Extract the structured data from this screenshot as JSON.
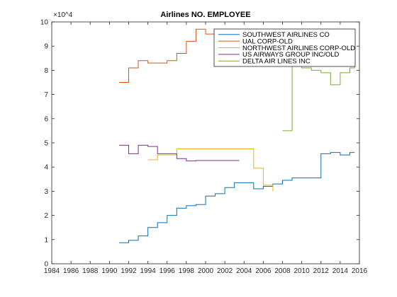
{
  "chart_data": {
    "type": "line",
    "title": "Airlines NO. EMPLOYEE",
    "xlabel": "",
    "ylabel": "",
    "y_scale_multiplier": "×10^4",
    "xlim": [
      1984,
      2016
    ],
    "ylim": [
      0,
      10
    ],
    "x_ticks": [
      1984,
      1986,
      1988,
      1990,
      1992,
      1994,
      1996,
      1998,
      2000,
      2002,
      2004,
      2006,
      2008,
      2010,
      2012,
      2014,
      2016
    ],
    "y_ticks": [
      0,
      1,
      2,
      3,
      4,
      5,
      6,
      7,
      8,
      9,
      10
    ],
    "legend_position": "top-right",
    "grid": false,
    "series": [
      {
        "name": "SOUTHWEST AIRLINES CO",
        "color": "#0072BD",
        "x": [
          1991,
          1992,
          1993,
          1994,
          1995,
          1996,
          1997,
          1998,
          1999,
          2000,
          2001,
          2002,
          2003,
          2005,
          2006,
          2007,
          2008,
          2009,
          2012,
          2013,
          2014,
          2015,
          2015.5
        ],
        "y": [
          0.87,
          0.97,
          1.15,
          1.5,
          1.7,
          2.0,
          2.3,
          2.4,
          2.45,
          2.8,
          2.9,
          3.15,
          3.35,
          3.1,
          3.2,
          3.3,
          3.45,
          3.55,
          4.55,
          4.6,
          4.5,
          4.6,
          4.6
        ]
      },
      {
        "name": "UAL CORP-OLD",
        "color": "#D95319",
        "x": [
          1991,
          1992,
          1993,
          1994,
          1996,
          1997,
          1998,
          1999,
          2000,
          2001
        ],
        "y": [
          7.5,
          8.1,
          8.4,
          8.3,
          8.4,
          8.7,
          9.2,
          9.7,
          9.5,
          9.5
        ]
      },
      {
        "name": "NORTHWEST AIRLINES CORP-OLD",
        "color": "#EDB120",
        "x": [
          1994,
          1995,
          1997,
          2005,
          2006,
          2007
        ],
        "y": [
          4.3,
          4.5,
          4.75,
          3.95,
          3.25,
          3.0
        ]
      },
      {
        "name": "US AIRWAYS GROUP INC/OLD",
        "color": "#7E2F8E",
        "x": [
          1991,
          1992,
          1993,
          1994,
          1995,
          1997,
          1998,
          1999,
          2000,
          2001,
          2003.5
        ],
        "y": [
          4.9,
          4.55,
          4.9,
          4.85,
          4.55,
          4.35,
          4.25,
          4.27,
          4.27,
          4.27,
          4.27
        ]
      },
      {
        "name": "DELTA AIR LINES INC",
        "color": "#77AC30",
        "x": [
          2008,
          2009,
          2010,
          2011,
          2012,
          2013,
          2014,
          2015,
          2015.5
        ],
        "y": [
          5.5,
          8.5,
          8.1,
          8.0,
          7.9,
          7.4,
          7.9,
          8.1,
          8.3
        ]
      }
    ]
  }
}
